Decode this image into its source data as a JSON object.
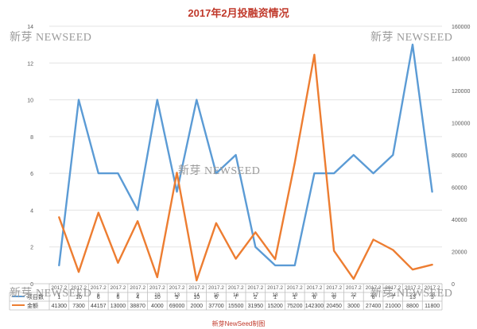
{
  "chart_data": {
    "type": "line",
    "title": "2017年2月投融资情况",
    "categories": [
      "2017.2.1",
      "2017.2.3",
      "2017.2.6",
      "2017.2.8",
      "2017.2.9",
      "2017.2.10",
      "2017.2.13",
      "2017.2.14",
      "2017.2.15",
      "2017.2.16",
      "2017.2.17",
      "2017.2.18",
      "2017.2.19",
      "2017.2.20",
      "2017.2.21",
      "2017.2.22",
      "2017.2.23",
      "2017.2.24",
      "2017.2.27",
      "2017.2.28"
    ],
    "cat_top": [
      "2017.2",
      "2017.2",
      "2017.2",
      "2017.2",
      "2017.2",
      "2017.2",
      "2017.2",
      "2017.2",
      "2017.2",
      "2017.2",
      "2017.2",
      "2017.2",
      "2017.2",
      "2017.2",
      "2017.2",
      "2017.2",
      "2017.2",
      "2017.2",
      "2017.2",
      "2017.2"
    ],
    "cat_bottom": [
      "1",
      "3",
      "6",
      "8",
      "9",
      "10",
      "13",
      "14",
      "15",
      "16",
      "17",
      "18",
      "19",
      "20",
      "21",
      "22",
      "23",
      "24",
      "27",
      "28"
    ],
    "series": [
      {
        "name": "项目数",
        "axis": "left",
        "color": "#5b9bd5",
        "values": [
          1,
          10,
          6,
          6,
          4,
          10,
          5,
          10,
          6,
          7,
          2,
          1,
          1,
          6,
          6,
          7,
          6,
          7,
          13,
          5
        ]
      },
      {
        "name": "金额",
        "axis": "right",
        "color": "#ed7d31",
        "values": [
          41300,
          7300,
          44157,
          13000,
          38870,
          4000,
          69000,
          2000,
          37700,
          15500,
          31950,
          15200,
          75200,
          142300,
          20450,
          3000,
          27400,
          21000,
          8800,
          11800
        ]
      }
    ],
    "y_left": {
      "min": 0,
      "max": 14,
      "ticks": [
        "0",
        "2",
        "4",
        "6",
        "8",
        "10",
        "12",
        "14"
      ]
    },
    "y_right": {
      "min": 0,
      "max": 160000,
      "ticks": [
        "0",
        "20000",
        "40000",
        "60000",
        "80000",
        "100000",
        "120000",
        "140000",
        "160000"
      ]
    },
    "legend": "data-table-below"
  },
  "watermark": "新芽 NEWSEED",
  "footer": "新芽NewSeed制图"
}
